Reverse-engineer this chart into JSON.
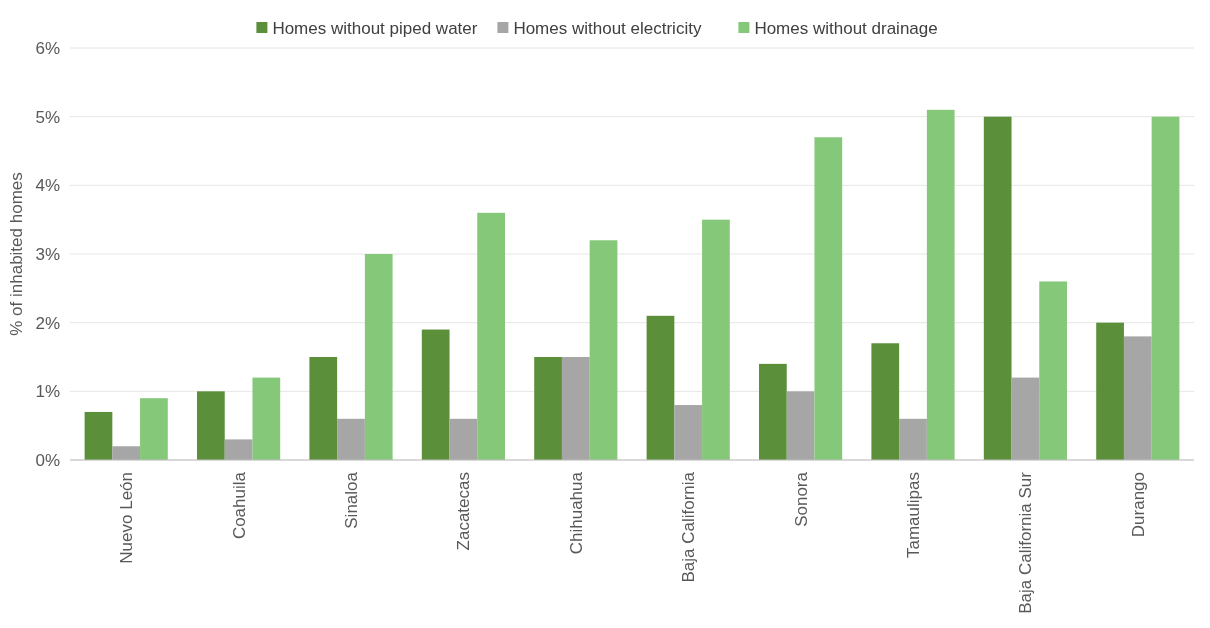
{
  "chart_data": {
    "type": "bar",
    "ylabel": "% of inhabited homes",
    "categories": [
      "Nuevo León",
      "Coahuila",
      "Sinaloa",
      "Zacatecas",
      "Chihuahua",
      "Baja California",
      "Sonora",
      "Tamaulipas",
      "Baja California Sur",
      "Durango"
    ],
    "series": [
      {
        "name": "Homes without piped water",
        "color": "#5b8f3a",
        "values": [
          0.7,
          1.0,
          1.5,
          1.9,
          1.5,
          2.1,
          1.4,
          1.7,
          5.0,
          2.0
        ]
      },
      {
        "name": "Homes without electricity",
        "color": "#a6a6a6",
        "values": [
          0.2,
          0.3,
          0.6,
          0.6,
          1.5,
          0.8,
          1.0,
          0.6,
          1.2,
          1.8
        ]
      },
      {
        "name": "Homes without drainage",
        "color": "#85c879",
        "values": [
          0.9,
          1.2,
          3.0,
          3.6,
          3.2,
          3.5,
          4.7,
          5.1,
          2.6,
          5.0
        ]
      }
    ],
    "ylim": [
      0,
      6
    ],
    "yticks": [
      {
        "value": 0,
        "label": "0%"
      },
      {
        "value": 1,
        "label": "1%"
      },
      {
        "value": 2,
        "label": "2%"
      },
      {
        "value": 3,
        "label": "3%"
      },
      {
        "value": 4,
        "label": "4%"
      },
      {
        "value": 5,
        "label": "5%"
      },
      {
        "value": 6,
        "label": "6%"
      }
    ],
    "grid": "y",
    "legend": "top"
  }
}
